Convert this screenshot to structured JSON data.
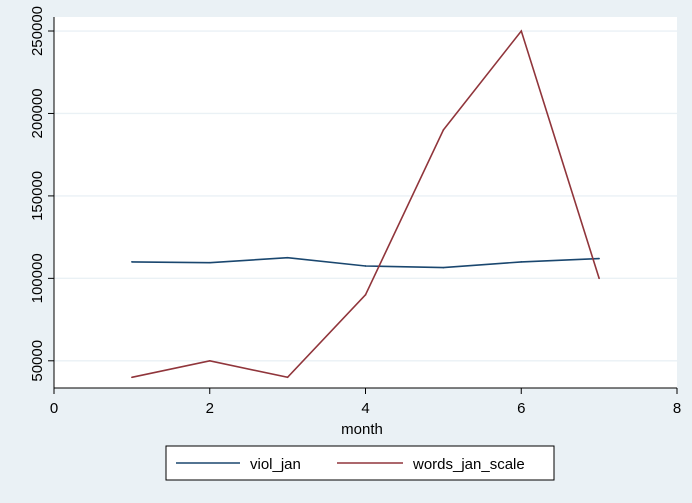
{
  "chart_data": {
    "type": "line",
    "title": "",
    "xlabel": "month",
    "ylabel": "",
    "xlim": [
      0,
      8
    ],
    "ylim": [
      33500,
      258500
    ],
    "x_ticks": [
      0,
      2,
      4,
      6,
      8
    ],
    "y_ticks": [
      50000,
      100000,
      150000,
      200000,
      250000
    ],
    "grid": "horizontal",
    "legend_position": "bottom",
    "x": [
      1,
      2,
      3,
      4,
      5,
      6,
      7
    ],
    "series": [
      {
        "name": "viol_jan",
        "color": "#1a476f",
        "values": [
          110000,
          109500,
          112500,
          107500,
          106500,
          110000,
          112000
        ]
      },
      {
        "name": "words_jan_scale",
        "color": "#90353b",
        "values": [
          40000,
          50000,
          40000,
          90000,
          190000,
          250000,
          100000
        ]
      }
    ]
  }
}
